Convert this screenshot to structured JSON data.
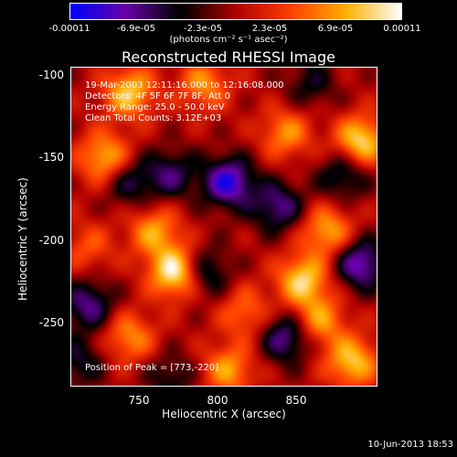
{
  "colorbar": {
    "ticks": [
      "-0.00011",
      "-6.9e-05",
      "-2.3e-05",
      "2.3e-05",
      "6.9e-05",
      "0.00011"
    ],
    "units": "(photons cm⁻² s⁻¹ asec⁻²)"
  },
  "chart_data": {
    "type": "heatmap",
    "title": "Reconstructed RHESSI Image",
    "xlabel": "Heliocentric X (arcsec)",
    "ylabel": "Heliocentric Y (arcsec)",
    "xlim": [
      710,
      895
    ],
    "ylim": [
      -290,
      -95
    ],
    "x_ticks": [
      "750",
      "800",
      "850"
    ],
    "y_ticks": [
      "-100",
      "-150",
      "-200",
      "-250"
    ],
    "color_range": [
      -0.00011,
      0.00011
    ],
    "colormap": [
      "#0000ff",
      "#6a00a8",
      "#000000",
      "#b00000",
      "#ff4000",
      "#ffb000",
      "#ffffff"
    ],
    "blobs": [
      {
        "x": 773,
        "y": -220,
        "v": 1.0
      },
      {
        "x": 745,
        "y": -110,
        "v": 0.75
      },
      {
        "x": 730,
        "y": -150,
        "v": 0.7
      },
      {
        "x": 885,
        "y": -140,
        "v": 0.85
      },
      {
        "x": 865,
        "y": -195,
        "v": 0.65
      },
      {
        "x": 850,
        "y": -225,
        "v": 0.8
      },
      {
        "x": 760,
        "y": -195,
        "v": 0.6
      },
      {
        "x": 840,
        "y": -135,
        "v": 0.55
      },
      {
        "x": 790,
        "y": -105,
        "v": 0.55
      },
      {
        "x": 880,
        "y": -275,
        "v": 0.75
      },
      {
        "x": 860,
        "y": -250,
        "v": 0.6
      },
      {
        "x": 745,
        "y": -260,
        "v": 0.55
      },
      {
        "x": 805,
        "y": -280,
        "v": 0.6
      },
      {
        "x": 815,
        "y": -245,
        "v": 0.45
      },
      {
        "x": 720,
        "y": -205,
        "v": 0.35
      },
      {
        "x": 805,
        "y": -165,
        "v": -0.85
      },
      {
        "x": 835,
        "y": -180,
        "v": -0.6
      },
      {
        "x": 885,
        "y": -215,
        "v": -0.75
      },
      {
        "x": 875,
        "y": -160,
        "v": -0.5
      },
      {
        "x": 720,
        "y": -240,
        "v": -0.6
      },
      {
        "x": 790,
        "y": -220,
        "v": -0.55
      },
      {
        "x": 840,
        "y": -260,
        "v": -0.65
      },
      {
        "x": 770,
        "y": -160,
        "v": -0.5
      },
      {
        "x": 745,
        "y": -165,
        "v": -0.45
      },
      {
        "x": 715,
        "y": -275,
        "v": -0.4
      },
      {
        "x": 770,
        "y": -285,
        "v": -0.35
      },
      {
        "x": 855,
        "y": -105,
        "v": -0.35
      }
    ]
  },
  "info": {
    "line1": "19-Mar-2003 12:11:16.000 to 12:16:08.000",
    "line2": "Detectors: 4F 5F 6F 7F 8F, Att 0",
    "line3": "Energy Range: 25.0 - 50.0 keV",
    "line4": "Clean    Total Counts: 3.12E+03"
  },
  "peak": "Position of Peak = [773,-220]",
  "timestamp": "10-Jun-2013 18:53"
}
